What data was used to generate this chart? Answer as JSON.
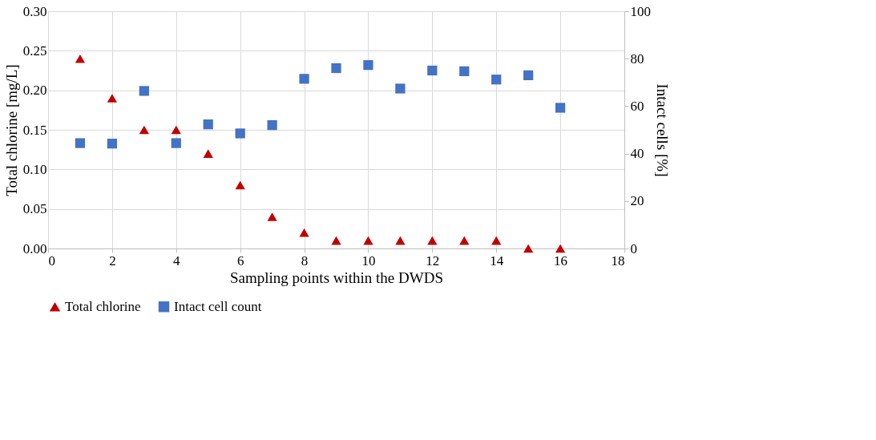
{
  "chart_data": {
    "type": "scatter",
    "xlabel": "Sampling points within the DWDS",
    "ylabel": "Total chlorine [mg/L]",
    "y2label": "Intact cells [%]",
    "x": [
      1,
      2,
      3,
      4,
      5,
      6,
      7,
      8,
      9,
      10,
      11,
      12,
      13,
      14,
      15,
      16
    ],
    "series": [
      {
        "name": "Total chlorine",
        "color": "#c00000",
        "marker": "triangle",
        "values": [
          0.24,
          0.19,
          0.15,
          0.15,
          0.12,
          0.08,
          0.04,
          0.02,
          0.01,
          0.01,
          0.01,
          0.01,
          0.01,
          0.01,
          0,
          0
        ]
      },
      {
        "name": "Intact cell count",
        "color": "#4472c4",
        "marker": "square",
        "axis": "y2",
        "values": [
          44.4,
          44.2,
          66.4,
          44.4,
          52.3,
          48.5,
          52.0,
          71.5,
          76.0,
          77.3,
          67.4,
          75.0,
          74.7,
          71.2,
          73.0,
          59.3
        ]
      }
    ],
    "xlim": [
      0,
      18
    ],
    "xticks": [
      0,
      2,
      4,
      6,
      8,
      10,
      12,
      14,
      16,
      18
    ],
    "ylim": [
      0,
      0.3
    ],
    "yticks": [
      {
        "value": 0,
        "label": "0.00"
      },
      0.05,
      {
        "value": 0.1,
        "label": "0.10"
      },
      0.15,
      {
        "value": 0.2,
        "label": "0.20"
      },
      0.25,
      {
        "value": 0.3,
        "label": "0.30"
      }
    ],
    "y2lim": [
      0,
      100
    ],
    "y2ticks": [
      0,
      20,
      40,
      60,
      80,
      100
    ],
    "grid": true,
    "legend": "bottom"
  }
}
